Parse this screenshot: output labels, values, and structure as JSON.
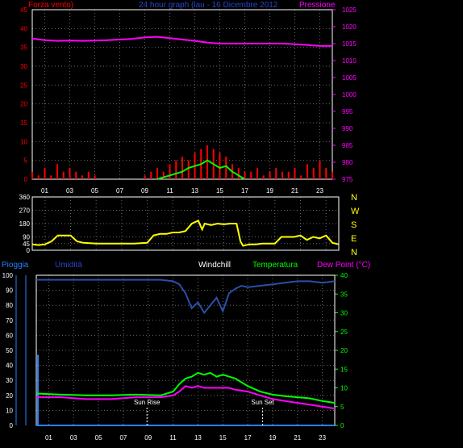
{
  "header": {
    "title": "24 hour graph (lau - 16 Dicembre 2012",
    "left_label": "Forza vento)",
    "right_label": "Pressione"
  },
  "mid": {
    "dirs": [
      "N",
      "W",
      "S",
      "E",
      "N"
    ]
  },
  "bottom": {
    "legend": [
      "Pioggia",
      "Umidità",
      "Windchill",
      "Temperatura",
      "Dew Point (°C)"
    ],
    "sunrise_label": "Sun Rise",
    "sunset_label": "Sun Set"
  },
  "colors": {
    "wind": "#ff0000",
    "gust": "#00ff00",
    "pressure": "#ff00ff",
    "direction": "#ffff00",
    "humidity": "#2a4fa8",
    "temperature": "#00ff00",
    "dewpoint": "#ff00ff",
    "rain": "#2a7fff",
    "grid": "#6a6a6a"
  },
  "chart_data": [
    {
      "type": "line",
      "name": "wind-pressure",
      "x_ticks": [
        "01",
        "03",
        "05",
        "07",
        "09",
        "11",
        "13",
        "15",
        "17",
        "19",
        "21",
        "23"
      ],
      "x_ticks_extra": [
        "03"
      ],
      "left_axis": {
        "label": "Forza vento)",
        "ylim": [
          0,
          45
        ],
        "ticks": [
          0,
          5,
          10,
          15,
          20,
          25,
          30,
          35,
          40,
          45
        ]
      },
      "right_axis": {
        "label": "Pressione",
        "ylim": [
          975,
          1025
        ],
        "ticks": [
          975,
          980,
          985,
          990,
          995,
          1000,
          1005,
          1010,
          1015,
          1020,
          1025
        ]
      },
      "pressure": {
        "x": [
          0,
          1,
          2,
          3,
          4,
          5,
          6,
          7,
          8,
          9,
          10,
          11,
          12,
          13,
          14,
          15,
          16,
          17,
          18,
          19,
          20,
          21,
          22,
          23,
          24
        ],
        "y": [
          1016.5,
          1016.0,
          1015.8,
          1015.9,
          1015.8,
          1015.9,
          1016.0,
          1016.2,
          1016.4,
          1016.8,
          1017.0,
          1016.6,
          1016.2,
          1015.8,
          1015.3,
          1015.0,
          1015.0,
          1015.0,
          1015.0,
          1015.0,
          1015.0,
          1014.8,
          1014.6,
          1014.3,
          1014.3
        ]
      },
      "wind": {
        "x": [
          0,
          0.5,
          1,
          1.5,
          2,
          2.5,
          3,
          3.5,
          4,
          4.5,
          5,
          5.5,
          6,
          6.5,
          7,
          7.5,
          8,
          8.5,
          9,
          9.5,
          10,
          10.5,
          11,
          11.5,
          12,
          12.5,
          13,
          13.5,
          14,
          14.5,
          15,
          15.5,
          16,
          16.5,
          17,
          17.5,
          18,
          18.5,
          19,
          19.5,
          20,
          20.5,
          21,
          21.5,
          22,
          22.5,
          23,
          23.5,
          24
        ],
        "y": [
          2,
          1,
          3,
          1,
          4,
          2,
          3,
          2,
          1,
          2,
          1,
          0,
          0,
          0,
          0,
          0,
          0,
          0,
          1,
          2,
          3,
          2,
          4,
          5,
          6,
          5,
          7,
          8,
          9,
          8,
          7,
          6,
          4,
          3,
          2,
          2,
          3,
          1,
          2,
          3,
          2,
          2,
          3,
          1,
          4,
          3,
          5,
          3,
          2
        ]
      },
      "gust": {
        "x": [
          10,
          11,
          11.5,
          12,
          12.5,
          13,
          13.5,
          14,
          14.5,
          15,
          15.5,
          16,
          16.5,
          17
        ],
        "y": [
          0,
          1,
          1.5,
          2,
          3,
          3.5,
          4,
          5,
          4,
          3,
          3.5,
          2,
          1,
          0
        ]
      }
    },
    {
      "type": "line",
      "name": "wind-direction",
      "x_ticks": [
        "01",
        "03",
        "05",
        "07",
        "09",
        "11",
        "13",
        "15",
        "17",
        "19",
        "21",
        "23"
      ],
      "ylim": [
        0,
        360
      ],
      "y_ticks": [
        0,
        45,
        90,
        180,
        270,
        360
      ],
      "direction": {
        "x": [
          0,
          0.5,
          1,
          1.5,
          2,
          2.5,
          3,
          3.5,
          4,
          5,
          6,
          7,
          8,
          9,
          9.5,
          10,
          10.5,
          11,
          11.5,
          12,
          12.5,
          13,
          13.3,
          13.5,
          14,
          14.5,
          15,
          15.5,
          16,
          16.3,
          16.5,
          17,
          17.5,
          18,
          18.5,
          19,
          19.5,
          20,
          20.5,
          21,
          21.5,
          22,
          22.5,
          23,
          23.5,
          24
        ],
        "y": [
          40,
          35,
          40,
          60,
          100,
          100,
          100,
          60,
          50,
          45,
          45,
          45,
          45,
          50,
          100,
          110,
          110,
          120,
          120,
          130,
          180,
          200,
          140,
          180,
          170,
          180,
          175,
          180,
          180,
          60,
          30,
          40,
          40,
          45,
          45,
          45,
          90,
          90,
          90,
          100,
          70,
          90,
          80,
          100,
          50,
          40
        ]
      }
    },
    {
      "type": "line",
      "name": "temp-humidity",
      "x_ticks": [
        "01",
        "03",
        "05",
        "07",
        "09",
        "11",
        "13",
        "15",
        "17",
        "19",
        "21",
        "23"
      ],
      "left_axis": {
        "label": "Pioggia",
        "ylim": [
          0,
          100
        ],
        "ticks": [
          0,
          10,
          20,
          30,
          40,
          50,
          60,
          70,
          80,
          90,
          100
        ]
      },
      "right_axis": {
        "label": "Dew Point (°C)",
        "ylim": [
          0,
          40
        ],
        "ticks": [
          0,
          5,
          10,
          15,
          20,
          25,
          30,
          35,
          40
        ]
      },
      "humidity": {
        "x": [
          0,
          2,
          4,
          6,
          8,
          10,
          11,
          11.5,
          12,
          12.5,
          13,
          13.5,
          14,
          14.5,
          15,
          15.5,
          16,
          16.5,
          17,
          18,
          19,
          20,
          21,
          22,
          23,
          24
        ],
        "y": [
          97,
          97,
          97,
          97,
          97,
          97,
          96,
          94,
          88,
          78,
          82,
          75,
          80,
          85,
          76,
          88,
          91,
          93,
          92,
          93,
          94,
          95,
          96,
          96,
          95,
          96
        ]
      },
      "temperature": {
        "x": [
          0,
          2,
          4,
          6,
          8,
          10,
          11,
          11.5,
          12,
          12.5,
          13,
          13.5,
          14,
          14.5,
          15,
          15.5,
          16,
          17,
          18,
          19,
          20,
          21,
          22,
          23,
          24
        ],
        "y": [
          8.5,
          8.2,
          8.0,
          8.0,
          8.2,
          8.0,
          9.0,
          11.0,
          12.5,
          13.0,
          14.0,
          13.5,
          14.0,
          13.0,
          13.5,
          13.0,
          12.5,
          10.5,
          9.0,
          8.2,
          7.8,
          7.5,
          7.2,
          6.5,
          6.0
        ]
      },
      "dewpoint": {
        "x": [
          0,
          2,
          4,
          6,
          8,
          10,
          11,
          11.5,
          12,
          12.5,
          13,
          13.5,
          14,
          14.5,
          15,
          15.5,
          16,
          17,
          18,
          19,
          20,
          21,
          22,
          23,
          24
        ],
        "y": [
          7.5,
          7.5,
          7.0,
          7.0,
          7.5,
          7.5,
          8.0,
          9.0,
          10.5,
          10.0,
          10.5,
          10.0,
          10.0,
          10.0,
          10.0,
          10.0,
          9.5,
          9.0,
          8.0,
          7.0,
          6.5,
          6.0,
          5.5,
          5.0,
          4.5
        ]
      },
      "rain": {
        "x": [
          0,
          0.3
        ],
        "y": [
          47,
          47
        ]
      },
      "sunrise_hour": 8.9,
      "sunset_hour": 18.2
    }
  ]
}
